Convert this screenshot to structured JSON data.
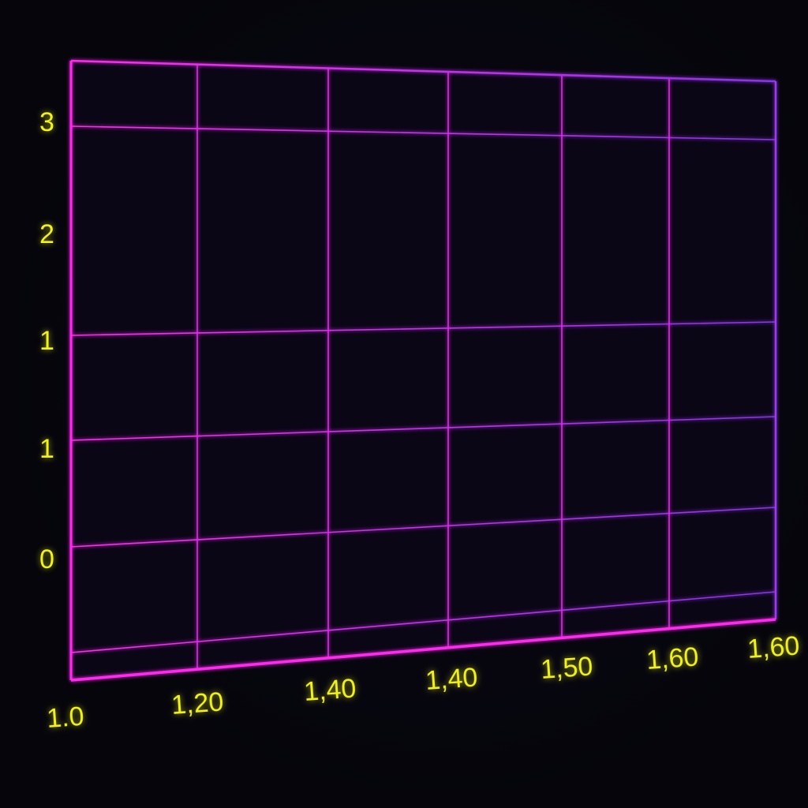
{
  "chart_data": {
    "type": "line",
    "title": "",
    "xlabel": "",
    "ylabel": "",
    "x_tick_labels": [
      "1.0",
      "1,20",
      "1,40",
      "1,40",
      "1,50",
      "1,60",
      "1,60"
    ],
    "y_tick_labels": [
      "3",
      "2",
      "1",
      "1",
      "0"
    ],
    "series": [],
    "grid": true,
    "perspective": "3d-tilted-plane",
    "colors": {
      "grid": "#ff2cf0",
      "grid_right": "#7a30e0",
      "ticks": "#f2f21a",
      "background": "#05050b"
    }
  }
}
